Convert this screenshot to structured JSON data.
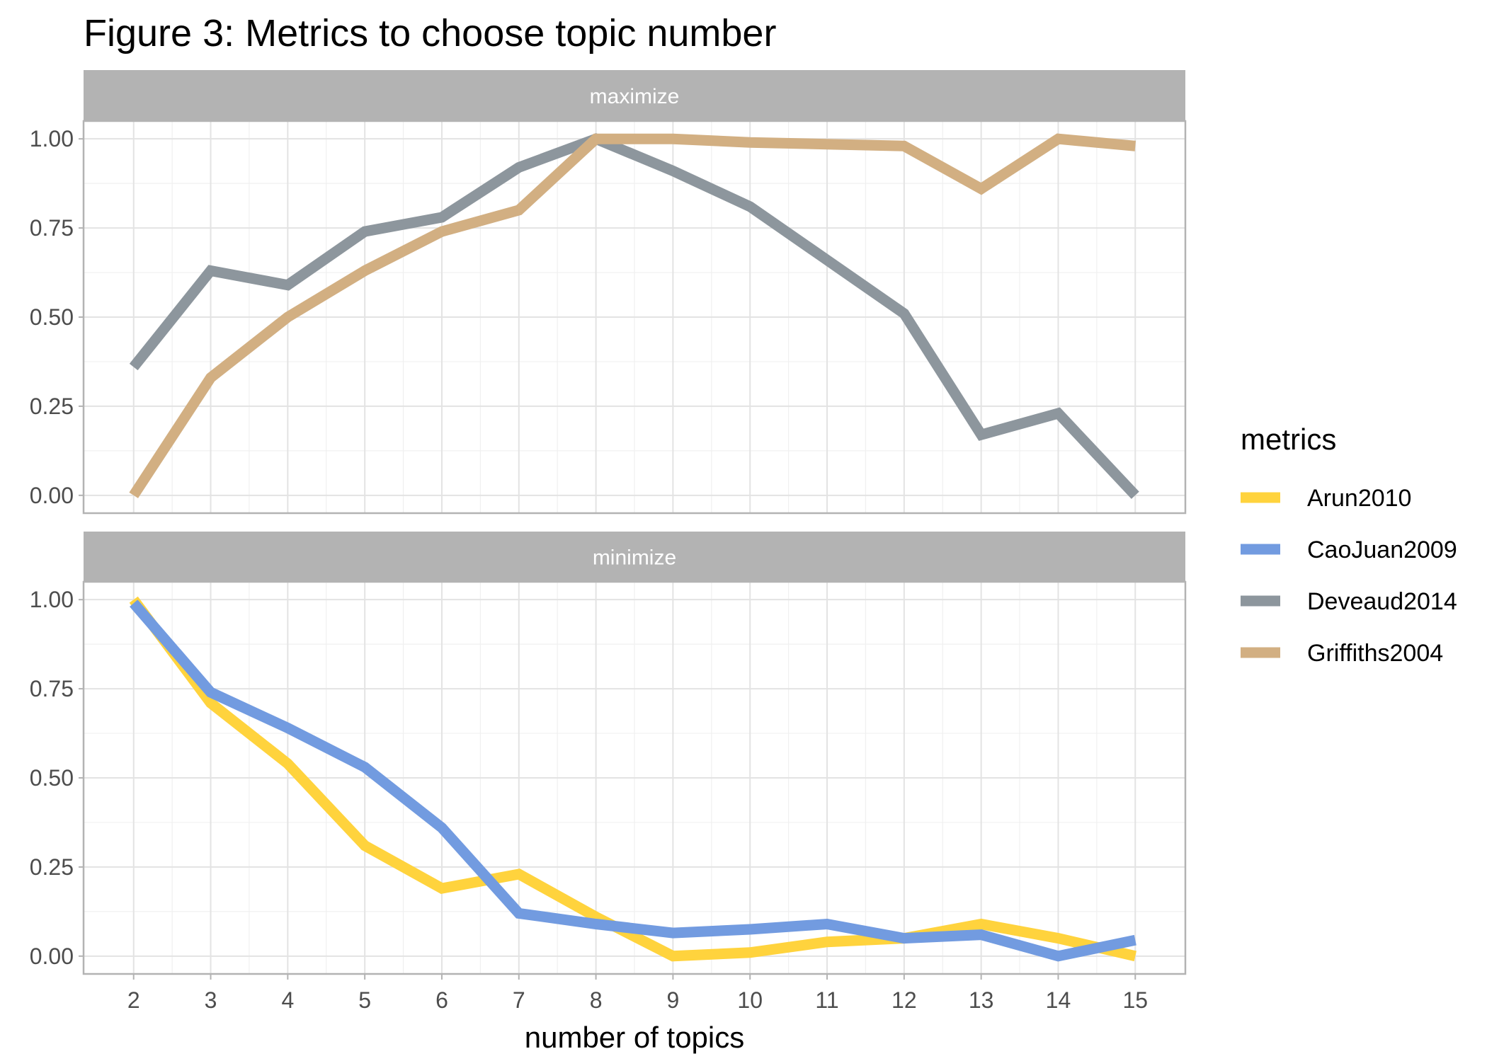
{
  "chart_data": {
    "type": "line",
    "title": "Figure 3: Metrics to choose topic number",
    "xlabel": "number of topics",
    "ylabel": "",
    "x": [
      2,
      3,
      4,
      5,
      6,
      7,
      8,
      9,
      10,
      11,
      12,
      13,
      14,
      15
    ],
    "ylim": [
      -0.05,
      1.05
    ],
    "yticks": [
      "0.00",
      "0.25",
      "0.50",
      "0.75",
      "1.00"
    ],
    "grid": true,
    "legend": {
      "title": "metrics",
      "position": "right",
      "entries": [
        {
          "name": "Arun2010",
          "color": "#FFD33D"
        },
        {
          "name": "CaoJuan2009",
          "color": "#729BE0"
        },
        {
          "name": "Deveaud2014",
          "color": "#8D969D"
        },
        {
          "name": "Griffiths2004",
          "color": "#D2AF82"
        }
      ]
    },
    "panels": [
      {
        "label": "maximize",
        "series": [
          {
            "name": "Deveaud2014",
            "color": "#8D969D",
            "values": [
              0.36,
              0.63,
              0.59,
              0.74,
              0.78,
              0.92,
              1.0,
              0.91,
              0.81,
              0.66,
              0.51,
              0.17,
              0.23,
              0.0
            ]
          },
          {
            "name": "Griffiths2004",
            "color": "#D2AF82",
            "values": [
              0.0,
              0.33,
              0.5,
              0.63,
              0.74,
              0.8,
              1.0,
              1.0,
              0.99,
              0.985,
              0.98,
              0.86,
              1.0,
              0.98
            ]
          }
        ]
      },
      {
        "label": "minimize",
        "series": [
          {
            "name": "Arun2010",
            "color": "#FFD33D",
            "values": [
              1.0,
              0.71,
              0.54,
              0.31,
              0.19,
              0.23,
              0.11,
              0.0,
              0.01,
              0.04,
              0.05,
              0.09,
              0.05,
              0.0
            ]
          },
          {
            "name": "CaoJuan2009",
            "color": "#729BE0",
            "values": [
              0.99,
              0.74,
              0.64,
              0.53,
              0.36,
              0.12,
              0.09,
              0.065,
              0.075,
              0.09,
              0.05,
              0.06,
              0.0,
              0.045
            ]
          }
        ]
      }
    ]
  }
}
